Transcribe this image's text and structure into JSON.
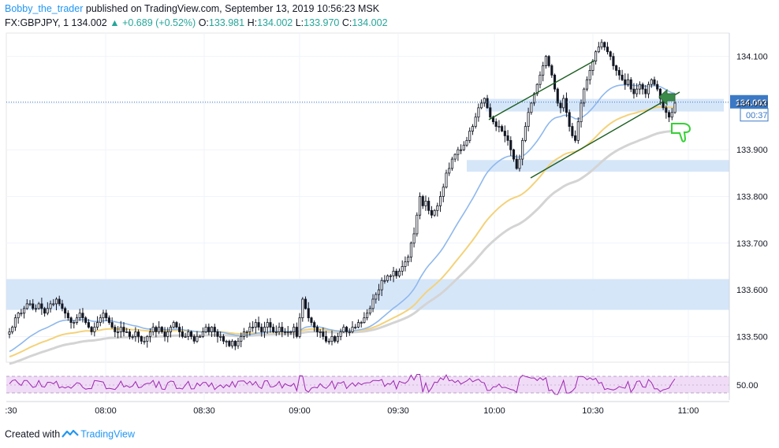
{
  "header": {
    "author": "Bobby_the_trader",
    "published_text": " published on TradingView.com, September 13, 2019 10:56:23 MSK",
    "symbol": "FX:GBPJPY, 1",
    "last": "134.002",
    "change": "+0.689 (+0.52%)",
    "open_label": "O:",
    "open": "133.981",
    "high_label": "H:",
    "high": "134.002",
    "low_label": "L:",
    "low": "133.970",
    "close_label": "C:",
    "close": "134.002"
  },
  "footer": {
    "created_with": "Created with",
    "brand": "TradingView"
  },
  "colors": {
    "up": "#26a69a",
    "down": "#131722",
    "candle_body": "#ffffff",
    "ma_fast": "#8fb8ec",
    "ma_mid": "#f4d27a",
    "ma_slow": "#d4d4d4",
    "zone": "#cfe2f8",
    "channel": "#1b5e20",
    "arrow": "#3a8a4a",
    "thumb": "#35d135",
    "price_label": "#3b79c5",
    "rsi": "#9c27b0",
    "rsi_bg": "#f1dcf7"
  },
  "chart_data": {
    "type": "candlestick",
    "symbol": "GBPJPY",
    "timeframe": "1",
    "x_ticks": [
      ":30",
      "08:00",
      "08:30",
      "09:00",
      "09:30",
      "10:00",
      "10:30",
      "11:00"
    ],
    "y_ticks": [
      "134.100",
      "134.000",
      "133.900",
      "133.800",
      "133.700",
      "133.600",
      "133.500"
    ],
    "ylim": [
      133.445,
      134.15
    ],
    "current_price": "134.002",
    "countdown": "00:37",
    "rsi_level_label": "50.00",
    "close_series": [
      133.51,
      133.52,
      133.54,
      133.55,
      133.55,
      133.56,
      133.57,
      133.57,
      133.56,
      133.56,
      133.57,
      133.56,
      133.55,
      133.56,
      133.57,
      133.57,
      133.58,
      133.57,
      133.56,
      133.55,
      133.54,
      133.53,
      133.53,
      133.54,
      133.55,
      133.54,
      133.53,
      133.52,
      133.51,
      133.52,
      133.53,
      133.54,
      133.55,
      133.54,
      133.53,
      133.52,
      133.51,
      133.51,
      133.52,
      133.51,
      133.51,
      133.5,
      133.5,
      133.51,
      133.5,
      133.49,
      133.49,
      133.5,
      133.51,
      133.52,
      133.51,
      133.52,
      133.51,
      133.5,
      133.51,
      133.52,
      133.53,
      133.52,
      133.51,
      133.5,
      133.5,
      133.51,
      133.5,
      133.49,
      133.5,
      133.5,
      133.51,
      133.52,
      133.51,
      133.52,
      133.51,
      133.5,
      133.5,
      133.49,
      133.49,
      133.48,
      133.49,
      133.48,
      133.49,
      133.5,
      133.51,
      133.51,
      133.52,
      133.52,
      133.53,
      133.52,
      133.51,
      133.52,
      133.53,
      133.52,
      133.51,
      133.51,
      133.52,
      133.51,
      133.51,
      133.51,
      133.51,
      133.52,
      133.5,
      133.54,
      133.58,
      133.56,
      133.54,
      133.53,
      133.52,
      133.51,
      133.51,
      133.5,
      133.49,
      133.49,
      133.5,
      133.49,
      133.5,
      133.51,
      133.52,
      133.51,
      133.51,
      133.52,
      133.52,
      133.53,
      133.53,
      133.54,
      133.55,
      133.56,
      133.58,
      133.59,
      133.6,
      133.62,
      133.62,
      133.63,
      133.63,
      133.64,
      133.63,
      133.64,
      133.65,
      133.66,
      133.67,
      133.7,
      133.72,
      133.76,
      133.8,
      133.78,
      133.79,
      133.77,
      133.76,
      133.77,
      133.78,
      133.8,
      133.82,
      133.85,
      133.86,
      133.88,
      133.89,
      133.9,
      133.9,
      133.91,
      133.92,
      133.94,
      133.95,
      133.97,
      133.99,
      134.0,
      134.01,
      133.99,
      133.97,
      133.96,
      133.95,
      133.95,
      133.94,
      133.93,
      133.92,
      133.9,
      133.88,
      133.86,
      133.88,
      133.92,
      133.95,
      133.98,
      134.0,
      134.02,
      134.04,
      134.06,
      134.08,
      134.1,
      134.08,
      134.06,
      134.03,
      134.0,
      133.99,
      134.01,
      133.98,
      133.95,
      133.93,
      133.92,
      133.96,
      134.0,
      134.03,
      134.05,
      134.07,
      134.09,
      134.11,
      134.12,
      134.13,
      134.12,
      134.11,
      134.1,
      134.08,
      134.07,
      134.06,
      134.05,
      134.04,
      134.05,
      134.03,
      134.02,
      134.03,
      134.04,
      134.03,
      134.02,
      134.04,
      134.05,
      134.04,
      134.03,
      134.01,
      133.99,
      133.98,
      133.97,
      133.98,
      134.0
    ]
  }
}
